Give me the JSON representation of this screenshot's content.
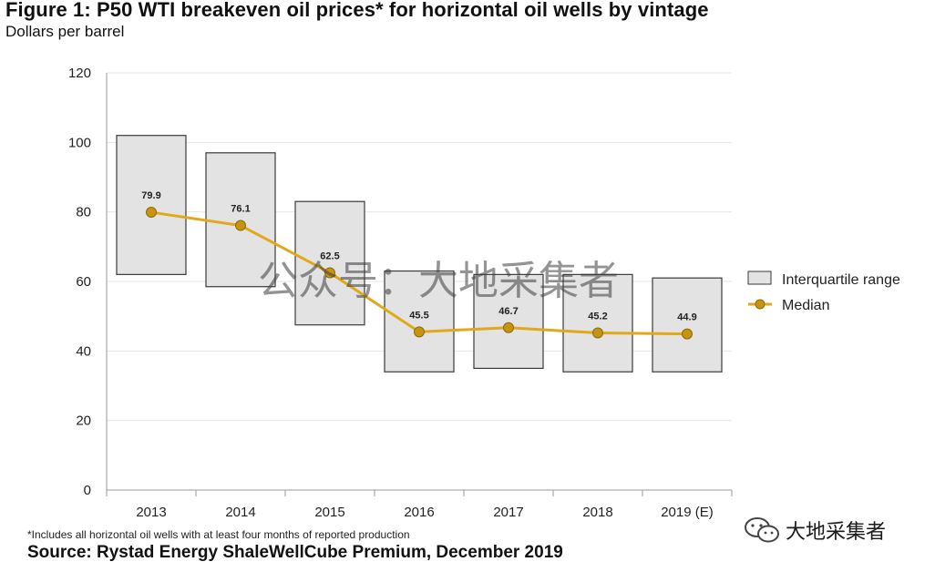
{
  "title": "Figure 1: P50 WTI breakeven oil prices* for horizontal oil wells by vintage",
  "subtitle": "Dollars per barrel",
  "footnote": "*Includes all horizontal oil wells with at least four months of reported production",
  "source": "Source: Rystad Energy ShaleWellCube Premium, December 2019",
  "watermark": "公众号：大地采集者",
  "wechat_label": "大地采集者",
  "colors": {
    "box_fill": "#e3e3e3",
    "box_stroke": "#3a3a3a",
    "median_line": "#e0a81a",
    "median_marker": "#c8940e",
    "grid": "#e6e6e6"
  },
  "chart_data": {
    "type": "bar",
    "categories": [
      "2013",
      "2014",
      "2015",
      "2016",
      "2017",
      "2018",
      "2019 (E)"
    ],
    "series": [
      {
        "name": "Interquartile range",
        "type": "floating-bar",
        "low": [
          62,
          58.5,
          47.5,
          34,
          35,
          34,
          34
        ],
        "high": [
          102,
          97,
          83,
          63,
          62,
          62,
          61
        ]
      },
      {
        "name": "Median",
        "type": "line",
        "values": [
          79.9,
          76.1,
          62.5,
          45.5,
          46.7,
          45.2,
          44.9
        ]
      }
    ],
    "data_labels": [
      "79.9",
      "76.1",
      "62.5",
      "45.5",
      "46.7",
      "45.2",
      "44.9"
    ],
    "ylim": [
      0,
      120
    ],
    "yticks": [
      0,
      20,
      40,
      60,
      80,
      100,
      120
    ],
    "ytick_labels": [
      "0",
      "20",
      "40",
      "60",
      "80",
      "100",
      "120"
    ],
    "grid": true,
    "legend": {
      "placement": "right",
      "entries": [
        "Interquartile range",
        "Median"
      ]
    }
  }
}
